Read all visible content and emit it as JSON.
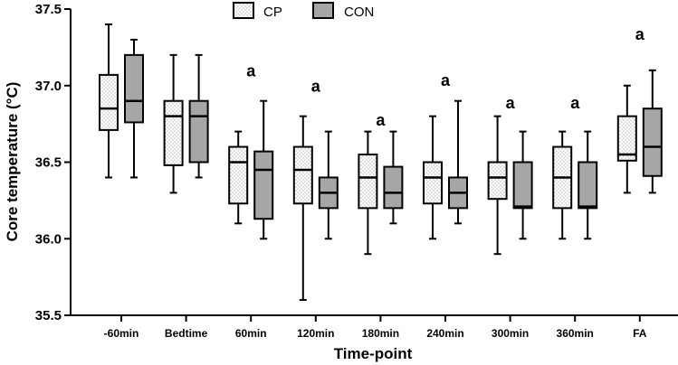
{
  "chart_data": {
    "type": "boxplot",
    "title": "",
    "xlabel": "Time-point",
    "ylabel": "Core temperature (°C)",
    "ylim": [
      35.5,
      37.5
    ],
    "yticks": [
      "35.5",
      "36.0",
      "36.5",
      "37.0",
      "37.5"
    ],
    "categories": [
      "-60min",
      "Bedtime",
      "60min",
      "120min",
      "180min",
      "240min",
      "300min",
      "360min",
      "FA"
    ],
    "series": [
      {
        "name": "CP",
        "pattern": "dotted",
        "fill": "#ffffff",
        "boxes": [
          {
            "min": 36.4,
            "q1": 36.71,
            "median": 36.85,
            "q3": 37.07,
            "max": 37.4
          },
          {
            "min": 36.3,
            "q1": 36.48,
            "median": 36.8,
            "q3": 36.9,
            "max": 37.2
          },
          {
            "min": 36.1,
            "q1": 36.23,
            "median": 36.5,
            "q3": 36.6,
            "max": 36.7
          },
          {
            "min": 35.6,
            "q1": 36.23,
            "median": 36.45,
            "q3": 36.6,
            "max": 36.8
          },
          {
            "min": 35.9,
            "q1": 36.2,
            "median": 36.4,
            "q3": 36.55,
            "max": 36.7
          },
          {
            "min": 36.0,
            "q1": 36.23,
            "median": 36.4,
            "q3": 36.5,
            "max": 36.8
          },
          {
            "min": 35.9,
            "q1": 36.26,
            "median": 36.4,
            "q3": 36.5,
            "max": 36.8
          },
          {
            "min": 36.0,
            "q1": 36.2,
            "median": 36.4,
            "q3": 36.6,
            "max": 36.7
          },
          {
            "min": 36.3,
            "q1": 36.51,
            "median": 36.55,
            "q3": 36.8,
            "max": 37.0
          }
        ]
      },
      {
        "name": "CON",
        "pattern": "solid",
        "fill": "#a6a6a6",
        "boxes": [
          {
            "min": 36.4,
            "q1": 36.76,
            "median": 36.9,
            "q3": 37.2,
            "max": 37.3
          },
          {
            "min": 36.4,
            "q1": 36.5,
            "median": 36.8,
            "q3": 36.9,
            "max": 37.2
          },
          {
            "min": 36.0,
            "q1": 36.13,
            "median": 36.45,
            "q3": 36.57,
            "max": 36.9
          },
          {
            "min": 36.0,
            "q1": 36.2,
            "median": 36.3,
            "q3": 36.4,
            "max": 36.7
          },
          {
            "min": 36.1,
            "q1": 36.2,
            "median": 36.3,
            "q3": 36.47,
            "max": 36.7
          },
          {
            "min": 36.1,
            "q1": 36.2,
            "median": 36.3,
            "q3": 36.4,
            "max": 36.9
          },
          {
            "min": 36.0,
            "q1": 36.2,
            "median": 36.21,
            "q3": 36.5,
            "max": 36.7
          },
          {
            "min": 36.0,
            "q1": 36.2,
            "median": 36.21,
            "q3": 36.5,
            "max": 36.7
          },
          {
            "min": 36.3,
            "q1": 36.41,
            "median": 36.6,
            "q3": 36.85,
            "max": 37.1
          }
        ]
      }
    ],
    "annotations": [
      {
        "category": "60min",
        "text": "a",
        "y": 37.06
      },
      {
        "category": "120min",
        "text": "a",
        "y": 36.96
      },
      {
        "category": "180min",
        "text": "a",
        "y": 36.74
      },
      {
        "category": "240min",
        "text": "a",
        "y": 37.0
      },
      {
        "category": "300min",
        "text": "a",
        "y": 36.85
      },
      {
        "category": "360min",
        "text": "a",
        "y": 36.85
      },
      {
        "category": "FA",
        "text": "a",
        "y": 37.3
      }
    ],
    "legend": {
      "position": "top-center",
      "entries": [
        "CP",
        "CON"
      ]
    },
    "grid": false
  }
}
